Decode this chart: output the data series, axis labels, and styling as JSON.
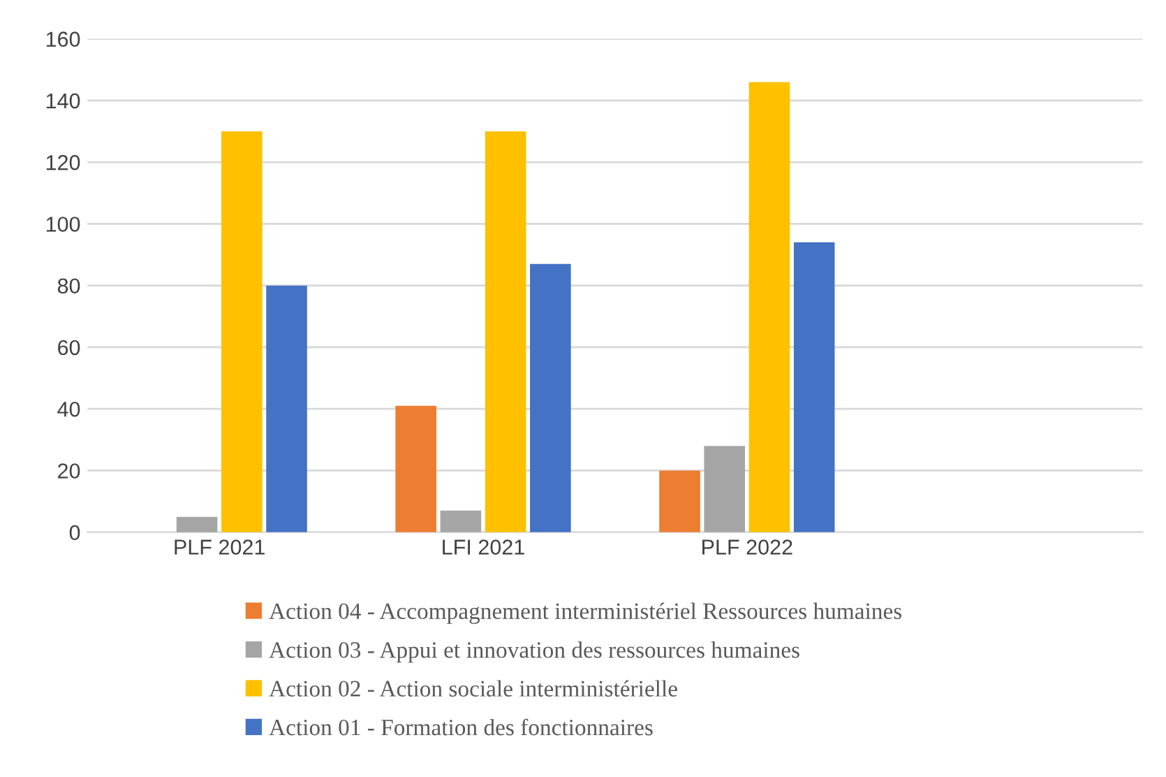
{
  "chart_data": {
    "type": "bar",
    "categories": [
      "PLF 2021",
      "LFI 2021",
      "PLF 2022",
      null
    ],
    "series": [
      {
        "name": "Action 04 - Accompagnement interministériel Ressources humaines",
        "color": "#ed7d31",
        "values": [
          null,
          41,
          20,
          null
        ]
      },
      {
        "name": "Action 03 - Appui et innovation des ressources humaines",
        "color": "#a5a5a5",
        "values": [
          5,
          7,
          28,
          null
        ]
      },
      {
        "name": "Action 02 - Action sociale interministérielle",
        "color": "#ffc000",
        "values": [
          130,
          130,
          146,
          null
        ]
      },
      {
        "name": "Action 01 - Formation des fonctionnaires",
        "color": "#4472c4",
        "values": [
          80,
          87,
          94,
          null
        ]
      }
    ],
    "ylim": [
      0,
      160
    ],
    "yticks": [
      0,
      20,
      40,
      60,
      80,
      100,
      120,
      140,
      160
    ],
    "grid": "y",
    "legend": "bottom"
  }
}
